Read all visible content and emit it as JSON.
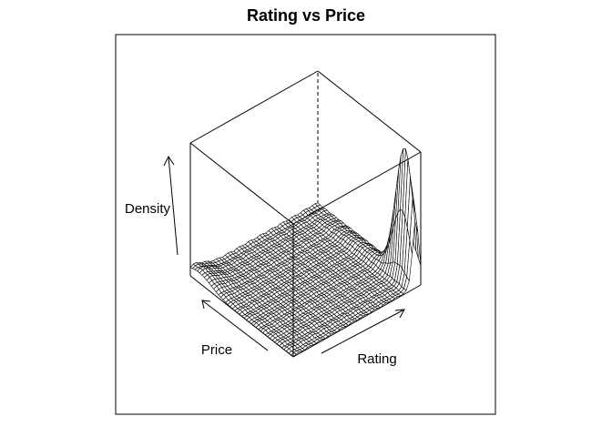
{
  "chart_data": {
    "type": "surface3d",
    "title": "Rating vs Price",
    "xlabel": "Rating",
    "ylabel": "Price",
    "zlabel": "Density",
    "box": true,
    "axes_ticks": false,
    "colors": {
      "mesh": "#000000",
      "face": "#ffffff",
      "box": "#000000"
    },
    "surface_features": [
      {
        "description_key": "low_broad_ridge_at_low_rating_far_price",
        "rating": 0.05,
        "price": 0.95,
        "relative_height": 0.08
      },
      {
        "description_key": "tall_narrow_peak_at_high_rating_low_price",
        "rating": 0.95,
        "price": 0.08,
        "relative_height": 1.0
      }
    ]
  }
}
